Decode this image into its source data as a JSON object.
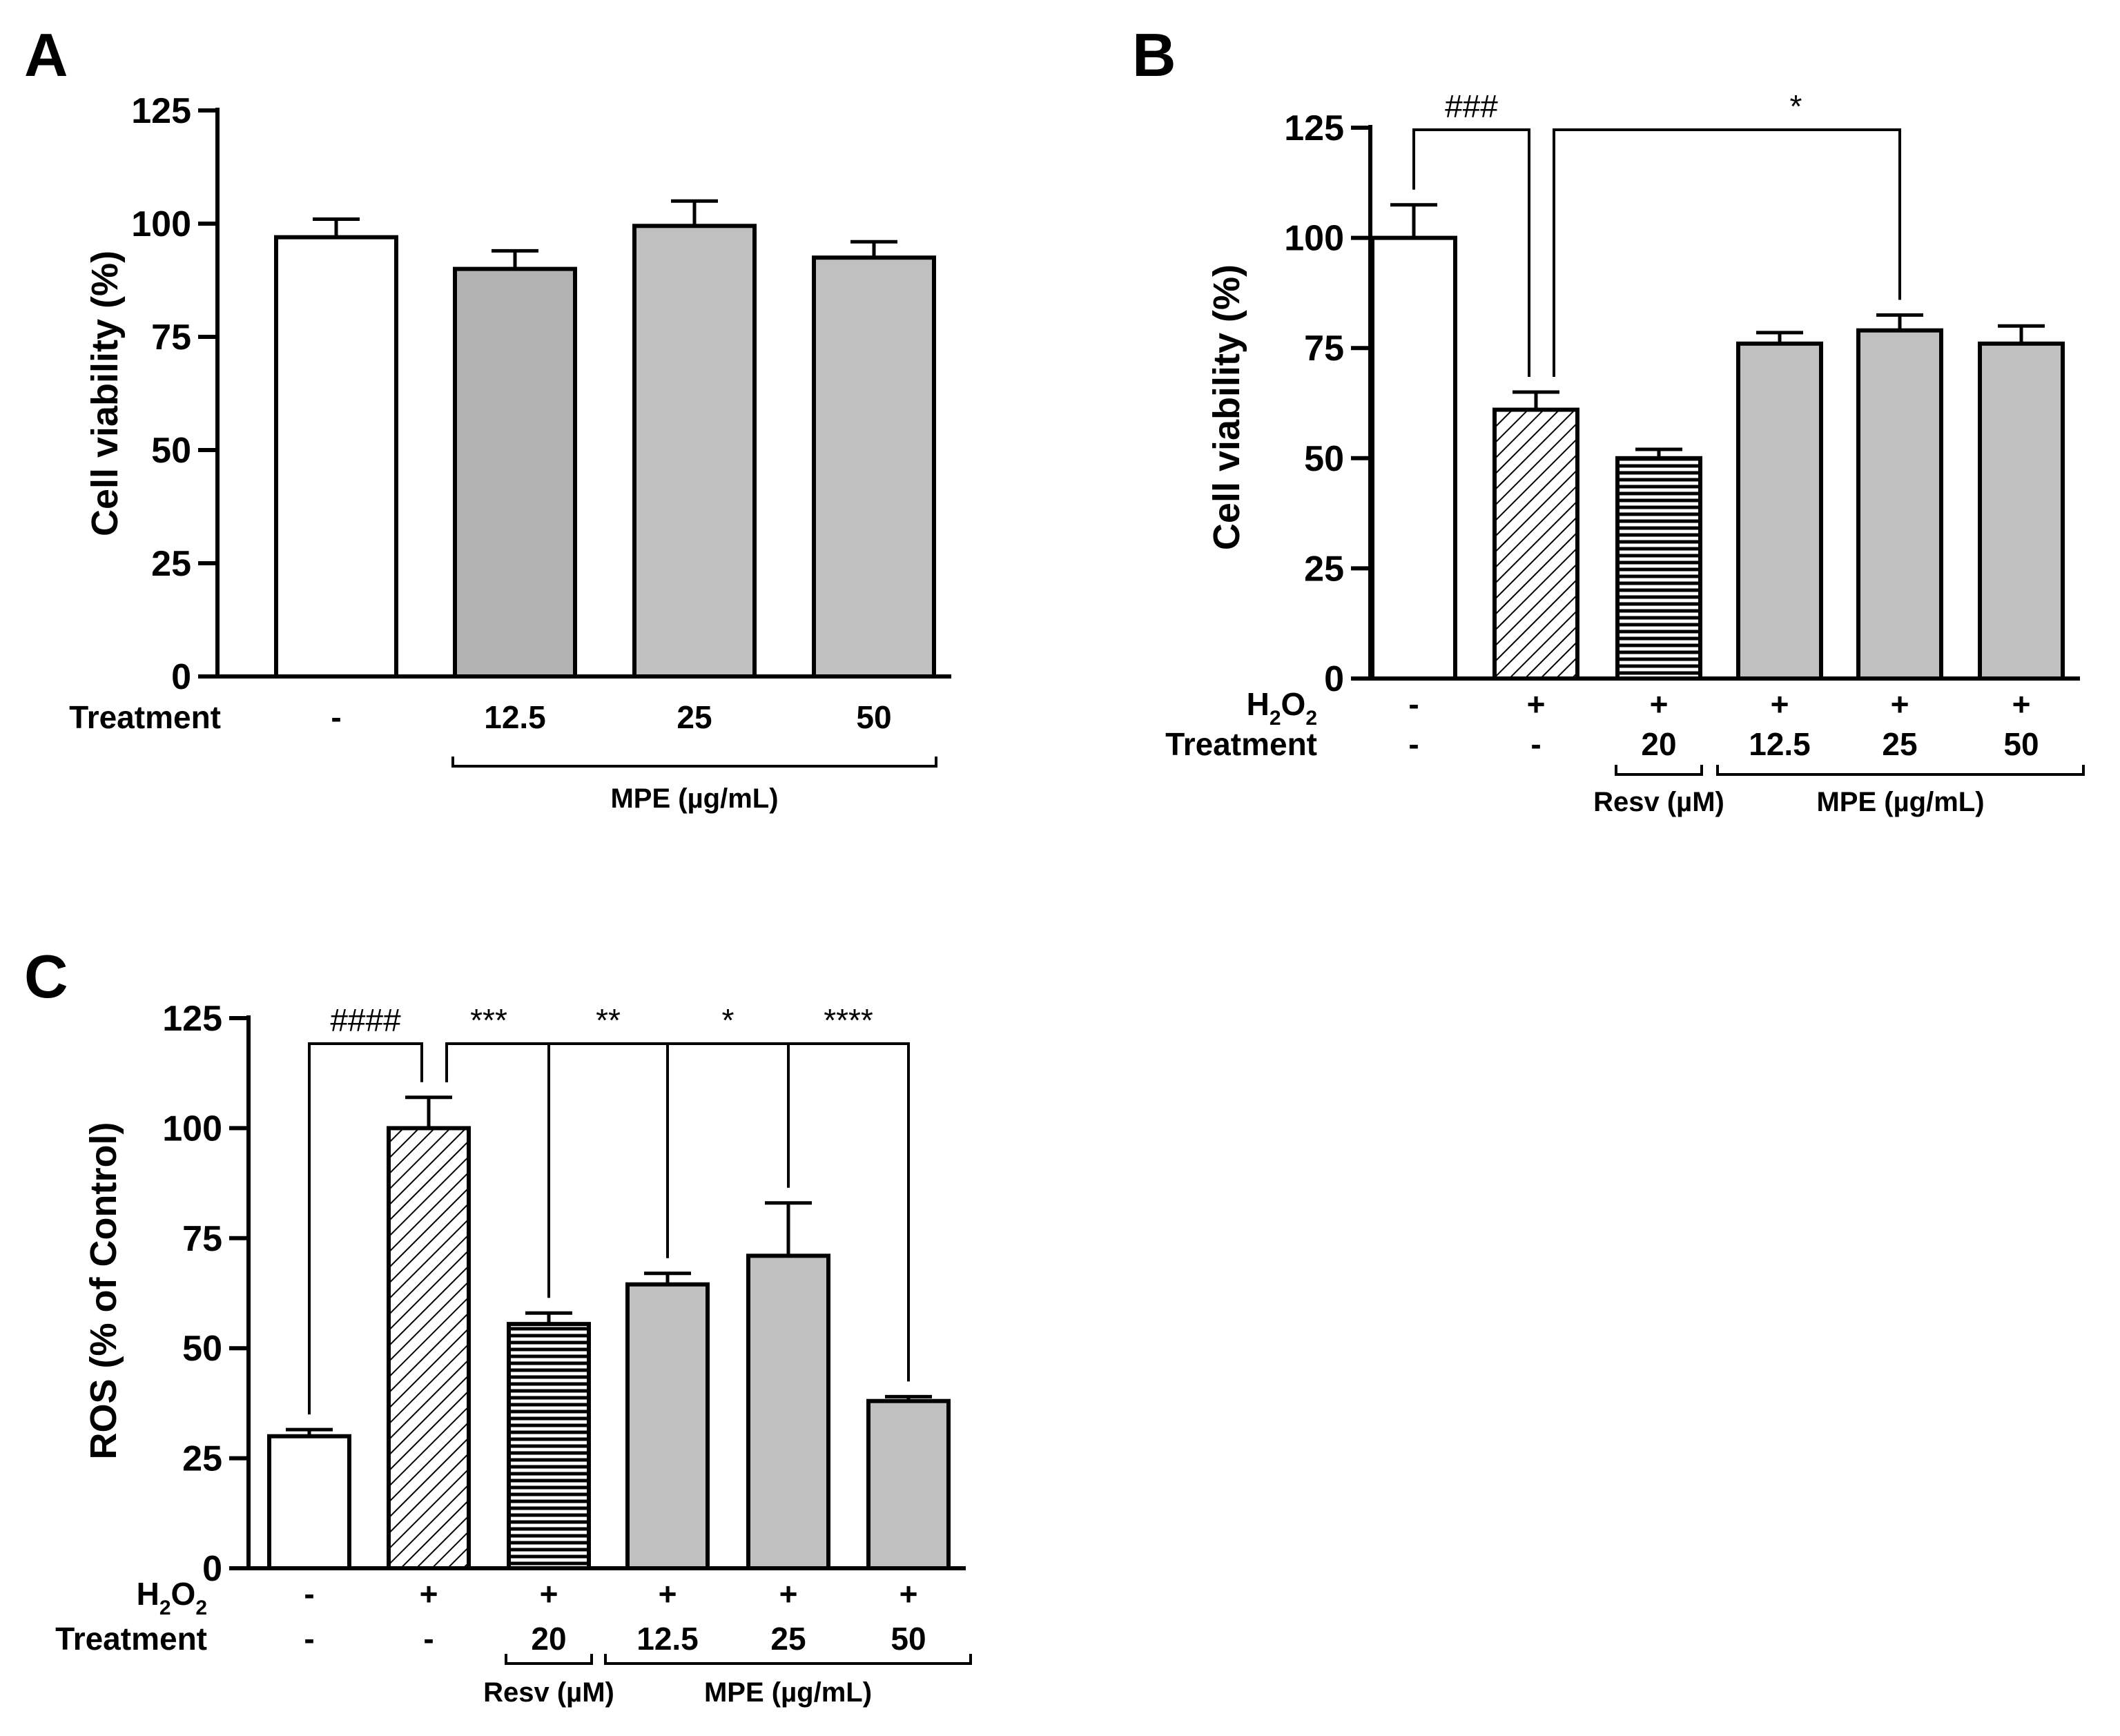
{
  "chart_data": [
    {
      "type": "bar",
      "panel": "A",
      "title": "",
      "ylabel": "Cell viability (%)",
      "ylim": [
        0,
        125
      ],
      "yticks": [
        0,
        25,
        50,
        75,
        100,
        125
      ],
      "categories": [
        "-",
        "12.5",
        "25",
        "50"
      ],
      "values": [
        97,
        90,
        99.5,
        92.5
      ],
      "errors": [
        4,
        4,
        5.5,
        3.5
      ],
      "bar_fills": [
        "white",
        "gray-dark",
        "gray",
        "gray"
      ],
      "rows": [
        {
          "label": "Treatment",
          "values": [
            "-",
            "12.5",
            "25",
            "50"
          ]
        }
      ],
      "groups": [
        {
          "label": "MPE (µg/mL)",
          "from": 1,
          "to": 3
        }
      ],
      "brackets": []
    },
    {
      "type": "bar",
      "panel": "B",
      "title": "",
      "ylabel": "Cell viability (%)",
      "ylim": [
        0,
        125
      ],
      "yticks": [
        0,
        25,
        50,
        75,
        100,
        125
      ],
      "categories": [
        "-",
        "-",
        "20",
        "12.5",
        "25",
        "50"
      ],
      "values": [
        100,
        61,
        50,
        76,
        79,
        76
      ],
      "errors": [
        7.5,
        4,
        2,
        2.5,
        3.5,
        4
      ],
      "bar_fills": [
        "white",
        "hatch-diag",
        "hatch-horiz",
        "gray",
        "gray",
        "gray"
      ],
      "rows": [
        {
          "label": "H2O2",
          "label_main": "H",
          "label_sub1": "2",
          "label_mid": "O",
          "label_sub2": "2",
          "values": [
            "-",
            "+",
            "+",
            "+",
            "+",
            "+"
          ]
        },
        {
          "label": "Treatment",
          "values": [
            "-",
            "-",
            "20",
            "12.5",
            "25",
            "50"
          ]
        }
      ],
      "groups": [
        {
          "label": "Resv (µM)",
          "from": 2,
          "to": 2
        },
        {
          "label": "MPE (µg/mL)",
          "from": 3,
          "to": 5
        }
      ],
      "brackets": [
        {
          "from": 0,
          "to": 1,
          "label": "###"
        },
        {
          "from": 1,
          "to": 4,
          "label": "*"
        }
      ]
    },
    {
      "type": "bar",
      "panel": "C",
      "title": "",
      "ylabel": "ROS (% of Control)",
      "ylim": [
        0,
        125
      ],
      "yticks": [
        0,
        25,
        50,
        75,
        100,
        125
      ],
      "categories": [
        "-",
        "-",
        "20",
        "12.5",
        "25",
        "50"
      ],
      "values": [
        30,
        100,
        55.5,
        64.5,
        71,
        38
      ],
      "errors": [
        1.5,
        7,
        2.5,
        2.5,
        12,
        1
      ],
      "bar_fills": [
        "white",
        "hatch-diag",
        "hatch-horiz",
        "gray",
        "gray",
        "gray"
      ],
      "rows": [
        {
          "label": "H2O2",
          "label_main": "H",
          "label_sub1": "2",
          "label_mid": "O",
          "label_sub2": "2",
          "values": [
            "-",
            "+",
            "+",
            "+",
            "+",
            "+"
          ]
        },
        {
          "label": "Treatment",
          "values": [
            "-",
            "-",
            "20",
            "12.5",
            "25",
            "50"
          ]
        }
      ],
      "groups": [
        {
          "label": "Resv (µM)",
          "from": 2,
          "to": 2
        },
        {
          "label": "MPE (µg/mL)",
          "from": 3,
          "to": 5
        }
      ],
      "brackets": [
        {
          "from": 0,
          "to": 1,
          "label": "####"
        },
        {
          "from": 1,
          "to": 2,
          "label": "***"
        },
        {
          "from": 1,
          "to": 3,
          "label": "**"
        },
        {
          "from": 1,
          "to": 4,
          "label": "*"
        },
        {
          "from": 1,
          "to": 5,
          "label": "****"
        }
      ]
    }
  ],
  "colors": {
    "axis": "#000000",
    "bar_white": "#ffffff",
    "bar_gray": "#c0c0c0",
    "bar_gray_dark": "#b3b3b3",
    "hatch_bg": "#ffffff"
  }
}
